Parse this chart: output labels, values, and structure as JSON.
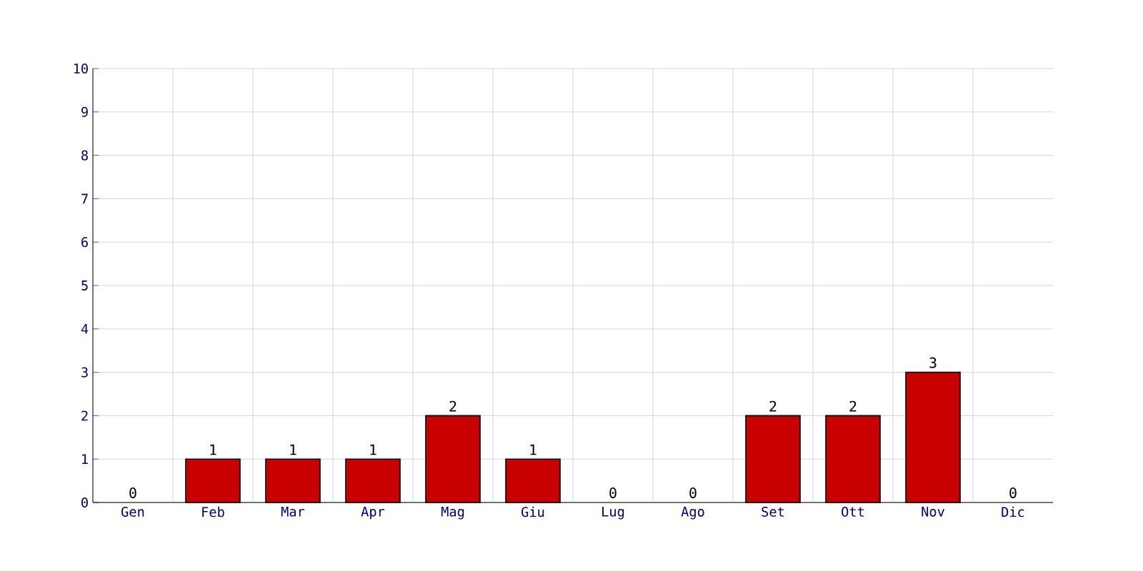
{
  "chart_data": {
    "type": "bar",
    "categories": [
      "Gen",
      "Feb",
      "Mar",
      "Apr",
      "Mag",
      "Giu",
      "Lug",
      "Ago",
      "Set",
      "Ott",
      "Nov",
      "Dic"
    ],
    "values": [
      0,
      1,
      1,
      1,
      2,
      1,
      0,
      0,
      2,
      2,
      3,
      0
    ],
    "color": "#c80000",
    "ylim": [
      0,
      10
    ],
    "yticks": [
      0,
      1,
      2,
      3,
      4,
      5,
      6,
      7,
      8,
      9,
      10
    ],
    "grid": true,
    "data_labels": true
  }
}
